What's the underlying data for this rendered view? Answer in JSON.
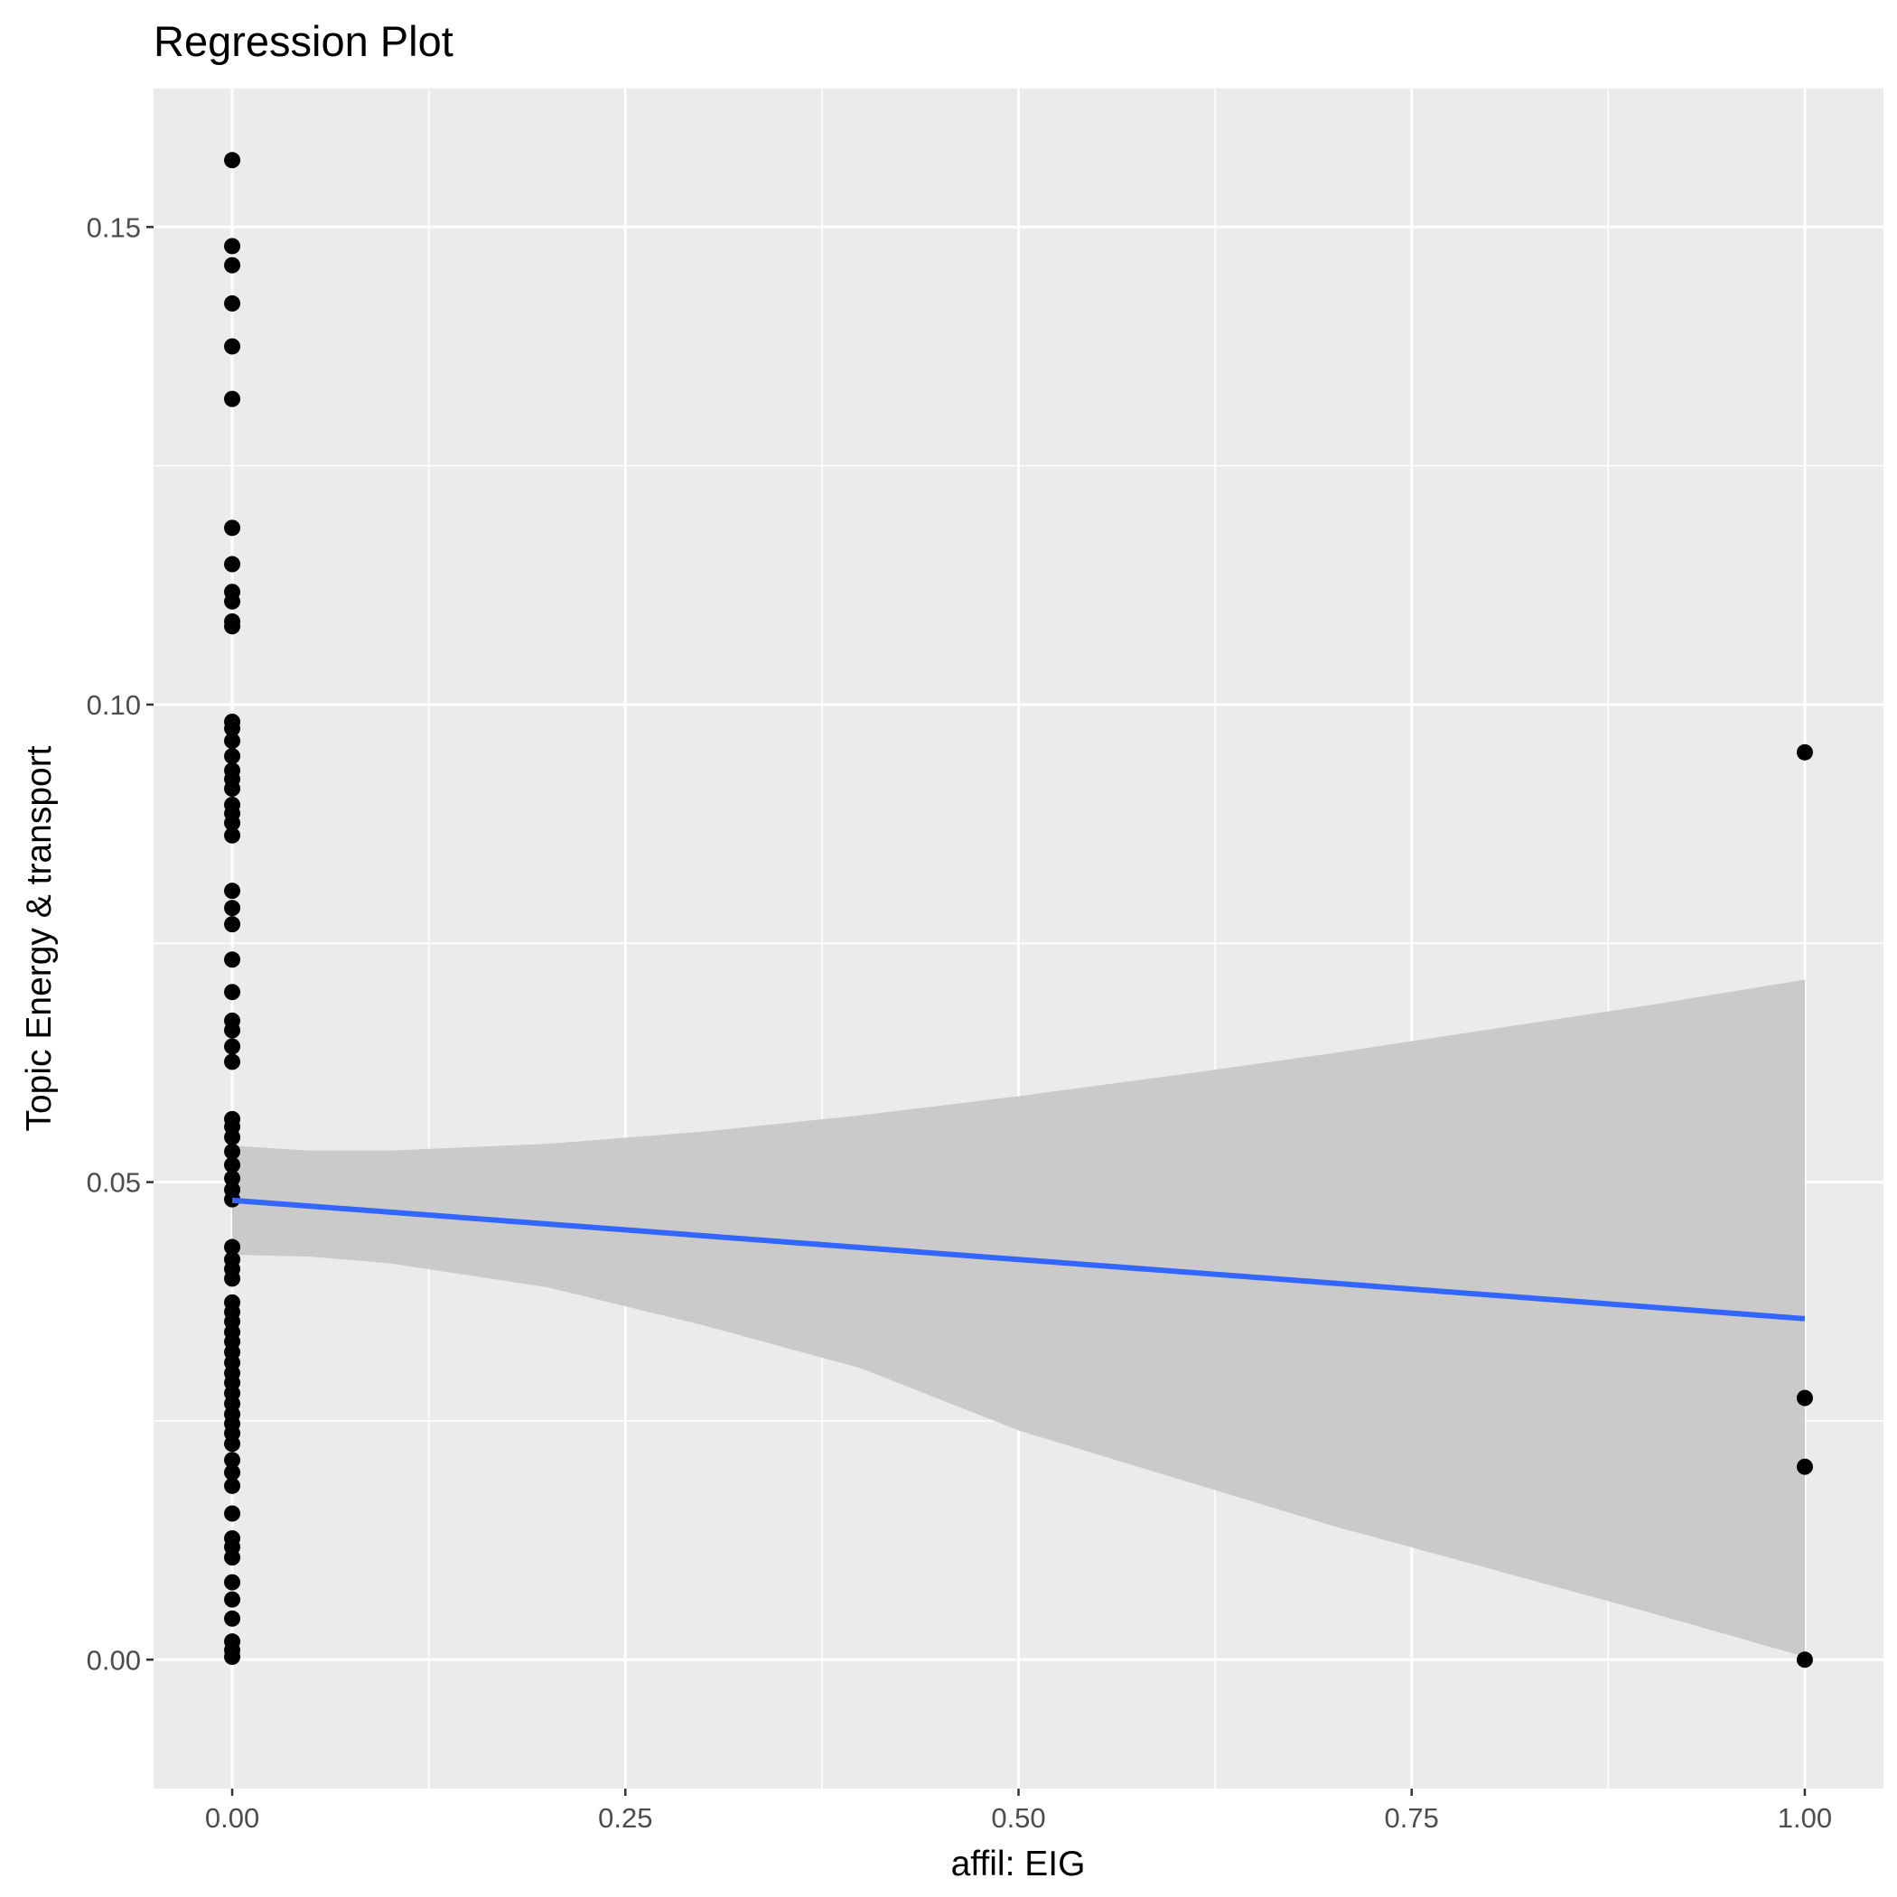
{
  "chart_data": {
    "type": "scatter",
    "title": "Regression Plot",
    "xlabel": "affil: EIG",
    "ylabel": "Topic Energy & transport",
    "xlim": [
      -0.05,
      1.05
    ],
    "ylim": [
      -0.0135,
      0.1645
    ],
    "x_ticks": [
      "0.00",
      "0.25",
      "0.50",
      "0.75",
      "1.00"
    ],
    "y_ticks": [
      "0.00",
      "0.05",
      "0.10",
      "0.15"
    ],
    "grid": true,
    "legend": "none",
    "colors": {
      "panel": "#ebebeb",
      "grid": "#ffffff",
      "points": "#000000",
      "line": "#3366ff",
      "band": "#c8c8c8"
    },
    "points": [
      {
        "x": 0,
        "y": 0.157
      },
      {
        "x": 0,
        "y": 0.148
      },
      {
        "x": 0,
        "y": 0.146
      },
      {
        "x": 0,
        "y": 0.142
      },
      {
        "x": 0,
        "y": 0.1375
      },
      {
        "x": 0,
        "y": 0.132
      },
      {
        "x": 0,
        "y": 0.1185
      },
      {
        "x": 0,
        "y": 0.1147
      },
      {
        "x": 0,
        "y": 0.1118
      },
      {
        "x": 0,
        "y": 0.1108
      },
      {
        "x": 0,
        "y": 0.1087
      },
      {
        "x": 0,
        "y": 0.1082
      },
      {
        "x": 0,
        "y": 0.0982
      },
      {
        "x": 0,
        "y": 0.0975
      },
      {
        "x": 0,
        "y": 0.0962
      },
      {
        "x": 0,
        "y": 0.0946
      },
      {
        "x": 0,
        "y": 0.0931
      },
      {
        "x": 0,
        "y": 0.0922
      },
      {
        "x": 0,
        "y": 0.0912
      },
      {
        "x": 0,
        "y": 0.0895
      },
      {
        "x": 0,
        "y": 0.0886
      },
      {
        "x": 0,
        "y": 0.0876
      },
      {
        "x": 0,
        "y": 0.0863
      },
      {
        "x": 0,
        "y": 0.0805
      },
      {
        "x": 0,
        "y": 0.0787
      },
      {
        "x": 0,
        "y": 0.077
      },
      {
        "x": 0,
        "y": 0.0733
      },
      {
        "x": 0,
        "y": 0.0699
      },
      {
        "x": 0,
        "y": 0.0669
      },
      {
        "x": 0,
        "y": 0.0659
      },
      {
        "x": 0,
        "y": 0.0642
      },
      {
        "x": 0,
        "y": 0.0626
      },
      {
        "x": 0,
        "y": 0.0566
      },
      {
        "x": 0,
        "y": 0.0558
      },
      {
        "x": 0,
        "y": 0.0547
      },
      {
        "x": 0,
        "y": 0.0532
      },
      {
        "x": 0,
        "y": 0.0518
      },
      {
        "x": 0,
        "y": 0.0504
      },
      {
        "x": 0,
        "y": 0.0492
      },
      {
        "x": 0,
        "y": 0.0482
      },
      {
        "x": 0,
        "y": 0.0432
      },
      {
        "x": 0,
        "y": 0.0419
      },
      {
        "x": 0,
        "y": 0.0409
      },
      {
        "x": 0,
        "y": 0.0399
      },
      {
        "x": 0,
        "y": 0.0374
      },
      {
        "x": 0,
        "y": 0.0364
      },
      {
        "x": 0,
        "y": 0.0354
      },
      {
        "x": 0,
        "y": 0.0343
      },
      {
        "x": 0,
        "y": 0.0333
      },
      {
        "x": 0,
        "y": 0.0322
      },
      {
        "x": 0,
        "y": 0.0311
      },
      {
        "x": 0,
        "y": 0.03
      },
      {
        "x": 0,
        "y": 0.029
      },
      {
        "x": 0,
        "y": 0.0279
      },
      {
        "x": 0,
        "y": 0.0268
      },
      {
        "x": 0,
        "y": 0.0257
      },
      {
        "x": 0,
        "y": 0.0247
      },
      {
        "x": 0,
        "y": 0.0237
      },
      {
        "x": 0,
        "y": 0.0226
      },
      {
        "x": 0,
        "y": 0.0209
      },
      {
        "x": 0,
        "y": 0.0196
      },
      {
        "x": 0,
        "y": 0.0182
      },
      {
        "x": 0,
        "y": 0.0153
      },
      {
        "x": 0,
        "y": 0.0127
      },
      {
        "x": 0,
        "y": 0.0118
      },
      {
        "x": 0,
        "y": 0.0107
      },
      {
        "x": 0,
        "y": 0.0081
      },
      {
        "x": 0,
        "y": 0.0063
      },
      {
        "x": 0,
        "y": 0.0043
      },
      {
        "x": 0,
        "y": 0.0019
      },
      {
        "x": 0,
        "y": 0.001
      },
      {
        "x": 0,
        "y": 0.0003
      },
      {
        "x": 1,
        "y": 0.095
      },
      {
        "x": 1,
        "y": 0.0274
      },
      {
        "x": 1,
        "y": 0.0202
      },
      {
        "x": 1,
        "y": 0.0
      }
    ],
    "fit": {
      "x": [
        0,
        1
      ],
      "y": [
        0.0481,
        0.0357
      ]
    },
    "band": {
      "x": [
        0,
        0.05,
        0.1,
        0.2,
        0.3,
        0.4,
        0.5,
        0.6,
        0.7,
        0.8,
        0.9,
        1.0
      ],
      "upper": [
        0.0538,
        0.0533,
        0.0533,
        0.054,
        0.0553,
        0.057,
        0.059,
        0.0612,
        0.0635,
        0.066,
        0.0685,
        0.0712
      ],
      "lower": [
        0.0424,
        0.0422,
        0.0415,
        0.039,
        0.035,
        0.0305,
        0.024,
        0.019,
        0.014,
        0.0095,
        0.005,
        0.0003
      ]
    }
  }
}
